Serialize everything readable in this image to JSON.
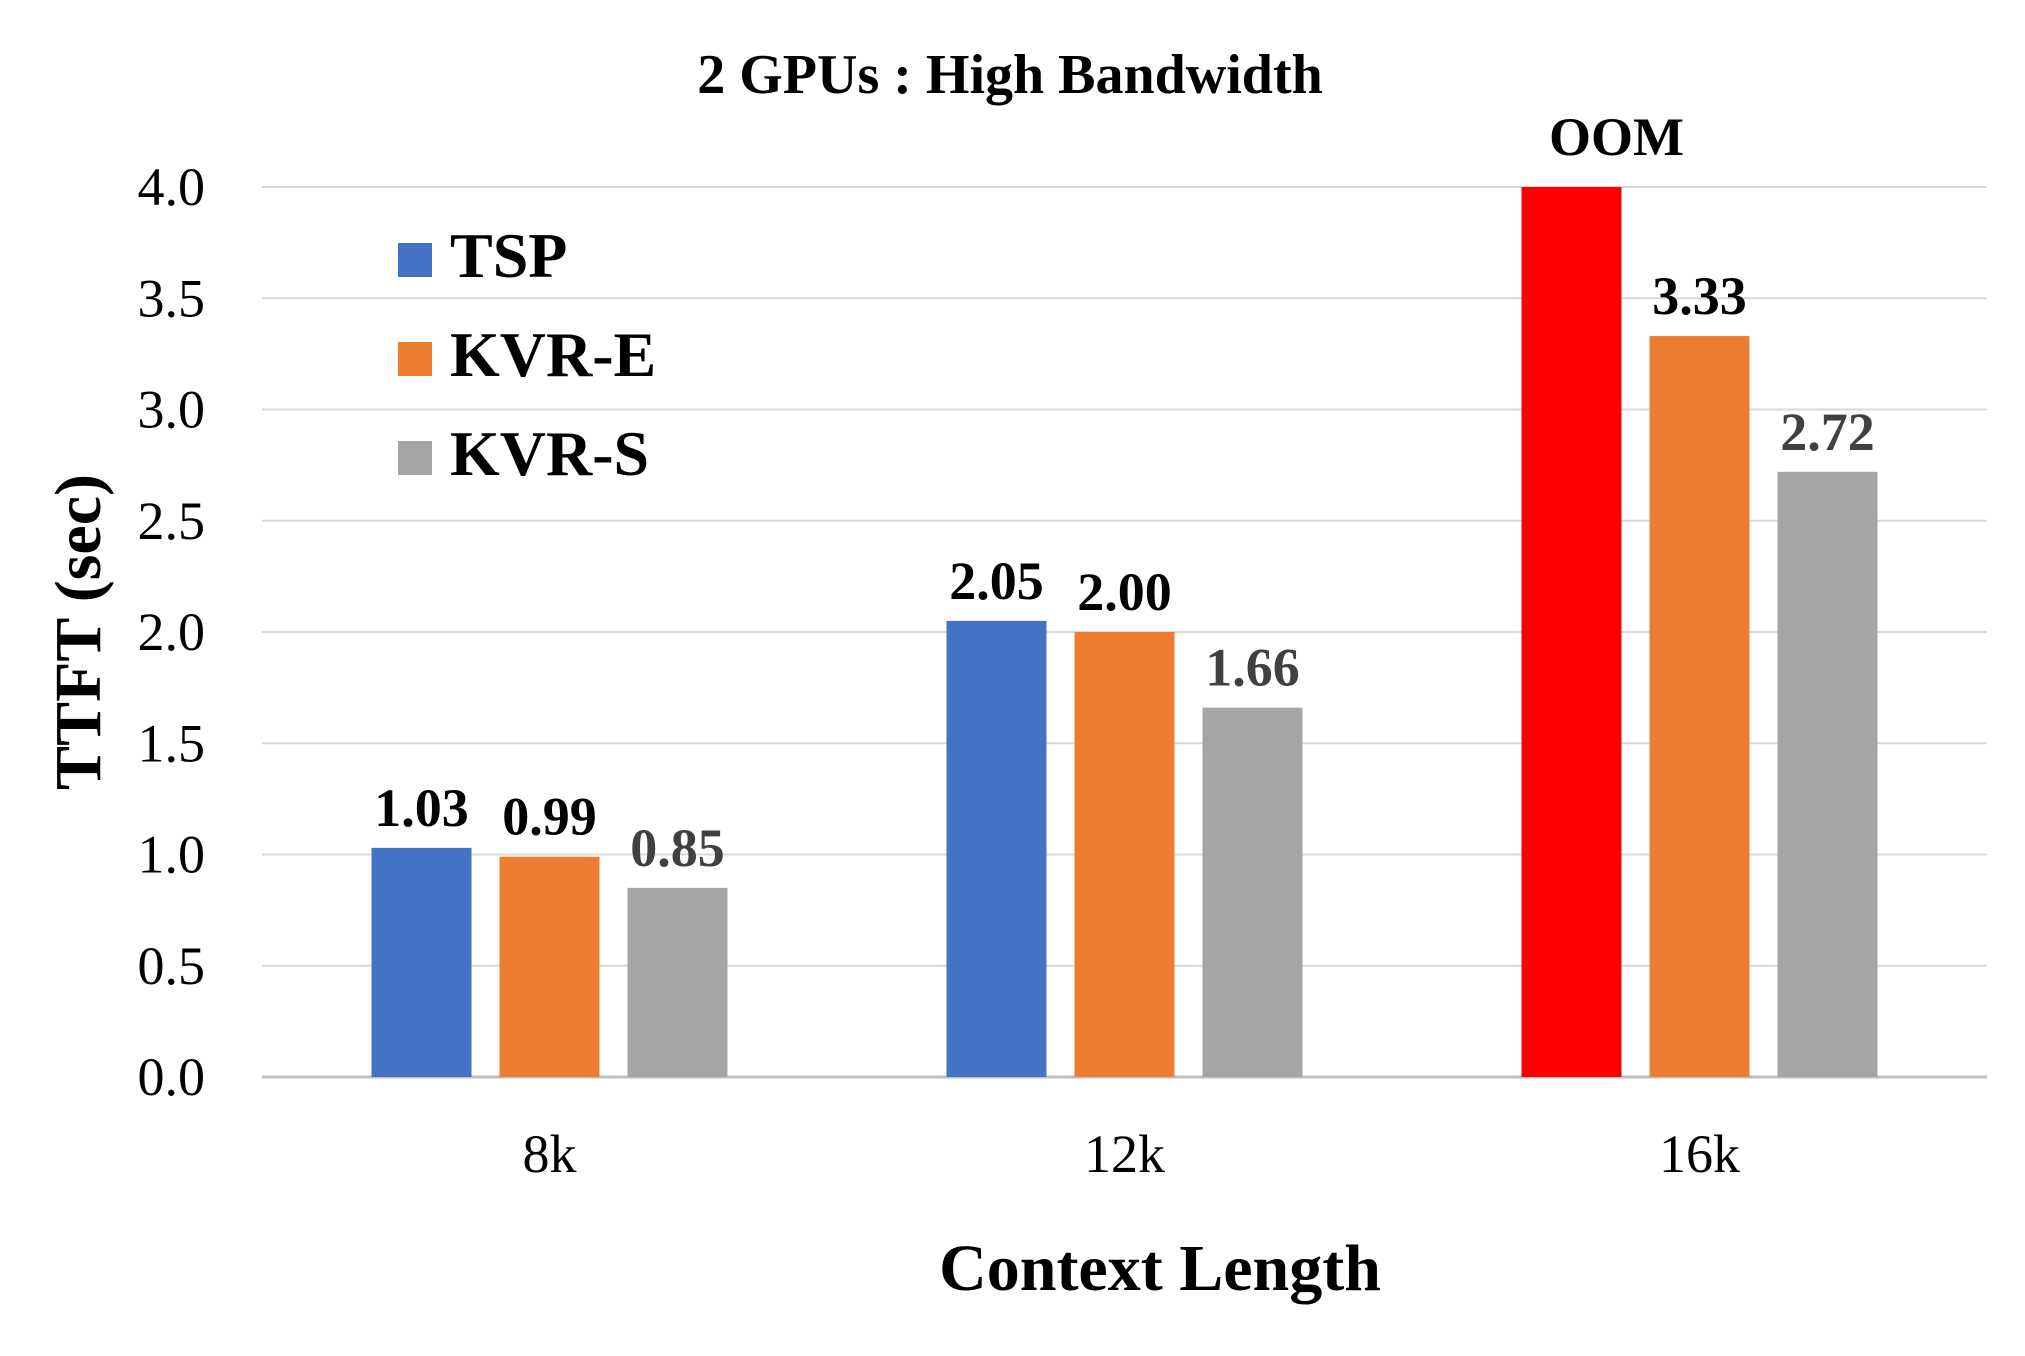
{
  "chart_data": {
    "type": "bar",
    "title": "2 GPUs : High Bandwidth",
    "xlabel": "Context Length",
    "ylabel": "TTFT (sec)",
    "categories": [
      "8k",
      "12k",
      "16k"
    ],
    "ylim": [
      0,
      4.0
    ],
    "yticks": [
      "0.0",
      "0.5",
      "1.0",
      "1.5",
      "2.0",
      "2.5",
      "3.0",
      "3.5",
      "4.0"
    ],
    "grid": true,
    "legend_position": "top-left",
    "series": [
      {
        "name": "TSP",
        "color": "#4472C4",
        "values": [
          1.03,
          2.05,
          4.0
        ],
        "labels": [
          "1.03",
          "2.05",
          ""
        ],
        "label_color": "#000000"
      },
      {
        "name": "KVR-E",
        "color": "#ED7D31",
        "values": [
          0.99,
          2.0,
          3.33
        ],
        "labels": [
          "0.99",
          "2.00",
          "3.33"
        ],
        "label_color": "#000000"
      },
      {
        "name": "KVR-S",
        "color": "#A5A5A5",
        "values": [
          0.85,
          1.66,
          2.72
        ],
        "labels": [
          "0.85",
          "1.66",
          "2.72"
        ],
        "label_color": "#404040"
      }
    ],
    "highlight": {
      "series": 0,
      "category": 2,
      "color": "#FF0000"
    },
    "annotations": [
      {
        "text": "OOM",
        "series": 0,
        "category": 2
      }
    ]
  }
}
